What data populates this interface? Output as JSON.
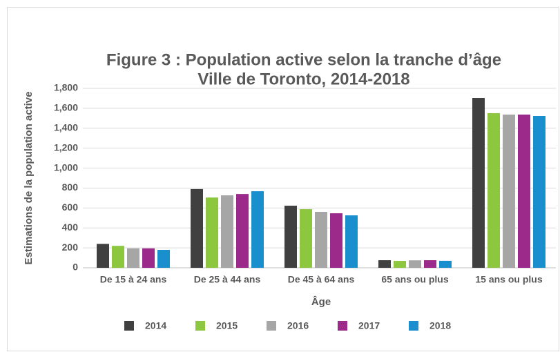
{
  "chart_data": {
    "type": "bar",
    "title": "Figure 3 : Population active selon la tranche d’âge",
    "subtitle": "Ville de Toronto, 2014-2018",
    "xlabel": "Âge",
    "ylabel": "Estimations de la population active",
    "categories": [
      "De 15 à 24 ans",
      "De 25 à 44 ans",
      "De 45 à 64 ans",
      "65 ans ou plus",
      "15 ans ou plus"
    ],
    "series": [
      {
        "name": "2014",
        "color": "#404040",
        "values": [
          240,
          790,
          623,
          76,
          1703
        ]
      },
      {
        "name": "2015",
        "color": "#8dc63f",
        "values": [
          220,
          705,
          588,
          69,
          1551
        ]
      },
      {
        "name": "2016",
        "color": "#a6a6a6",
        "values": [
          195,
          727,
          561,
          75,
          1537
        ]
      },
      {
        "name": "2017",
        "color": "#9b2a8a",
        "values": [
          195,
          740,
          547,
          76,
          1537
        ]
      },
      {
        "name": "2018",
        "color": "#1a8fce",
        "values": [
          180,
          768,
          526,
          70,
          1523
        ]
      }
    ],
    "ylim": [
      0,
      1800
    ],
    "yticks": [
      0,
      200,
      400,
      600,
      800,
      {
        "value": 1000,
        "label": "1,000"
      },
      {
        "value": 1200,
        "label": "1,200"
      },
      {
        "value": 1400,
        "label": "1,400"
      },
      {
        "value": 1600,
        "label": "1,600"
      },
      {
        "value": 1800,
        "label": "1,800"
      }
    ],
    "grid": true,
    "legend": "bottom"
  }
}
